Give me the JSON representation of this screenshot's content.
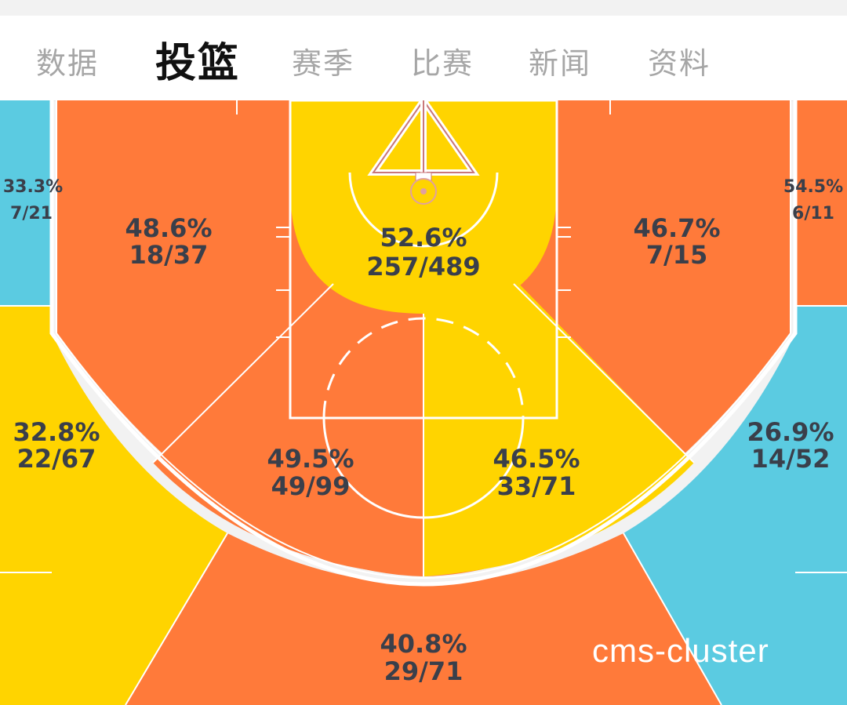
{
  "tabs": [
    {
      "label": "数据"
    },
    {
      "label": "投篮",
      "active": true
    },
    {
      "label": "赛季"
    },
    {
      "label": "比赛"
    },
    {
      "label": "新闻"
    },
    {
      "label": "资料"
    }
  ],
  "zones": {
    "left_corner_3": {
      "pct": "33.3%",
      "made_att": "7/21"
    },
    "left_wing_mid": {
      "pct": "48.6%",
      "made_att": "18/37"
    },
    "restricted_area": {
      "pct": "52.6%",
      "made_att": "257/489"
    },
    "right_wing_mid": {
      "pct": "46.7%",
      "made_att": "7/15"
    },
    "right_corner_3": {
      "pct": "54.5%",
      "made_att": "6/11"
    },
    "left_wing_3": {
      "pct": "32.8%",
      "made_att": "22/67"
    },
    "left_center_mid": {
      "pct": "49.5%",
      "made_att": "49/99"
    },
    "right_center_mid": {
      "pct": "46.5%",
      "made_att": "33/71"
    },
    "right_wing_3": {
      "pct": "26.9%",
      "made_att": "14/52"
    },
    "top_3": {
      "pct": "40.8%",
      "made_att": "29/71"
    }
  },
  "colors": {
    "hot": "#ff7a3a",
    "average": "#ffd400",
    "cold": "#5bcbe1",
    "lines": "#ffffff",
    "text": "#3a3f4a"
  },
  "watermark": "cms-cluster"
}
